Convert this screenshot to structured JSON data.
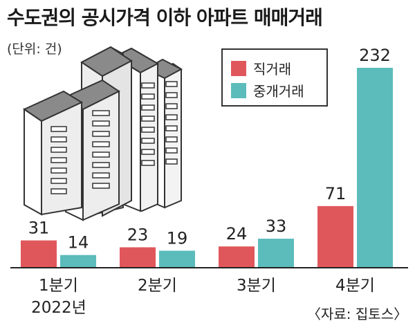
{
  "title": "수도권의 공시가격 이하 아파트 매매거래",
  "unit_label": "(단위: 건)",
  "source": "〈자료: 집토스〉",
  "year_label": "2022년",
  "legend": [
    {
      "name": "직거래",
      "color": "#e0575b"
    },
    {
      "name": "중개거래",
      "color": "#5bbcbb"
    }
  ],
  "chart_data": {
    "type": "bar",
    "title": "수도권의 공시가격 이하 아파트 매매거래",
    "unit": "(단위: 건)",
    "categories": [
      "1분기",
      "2분기",
      "3분기",
      "4분기"
    ],
    "series": [
      {
        "name": "직거래",
        "color": "#e0575b",
        "values": [
          31,
          23,
          24,
          71
        ]
      },
      {
        "name": "중개거래",
        "color": "#5bbcbb",
        "values": [
          14,
          19,
          33,
          232
        ]
      }
    ],
    "ylim": [
      0,
      232
    ],
    "grid": false,
    "legend_position": "top-right"
  }
}
